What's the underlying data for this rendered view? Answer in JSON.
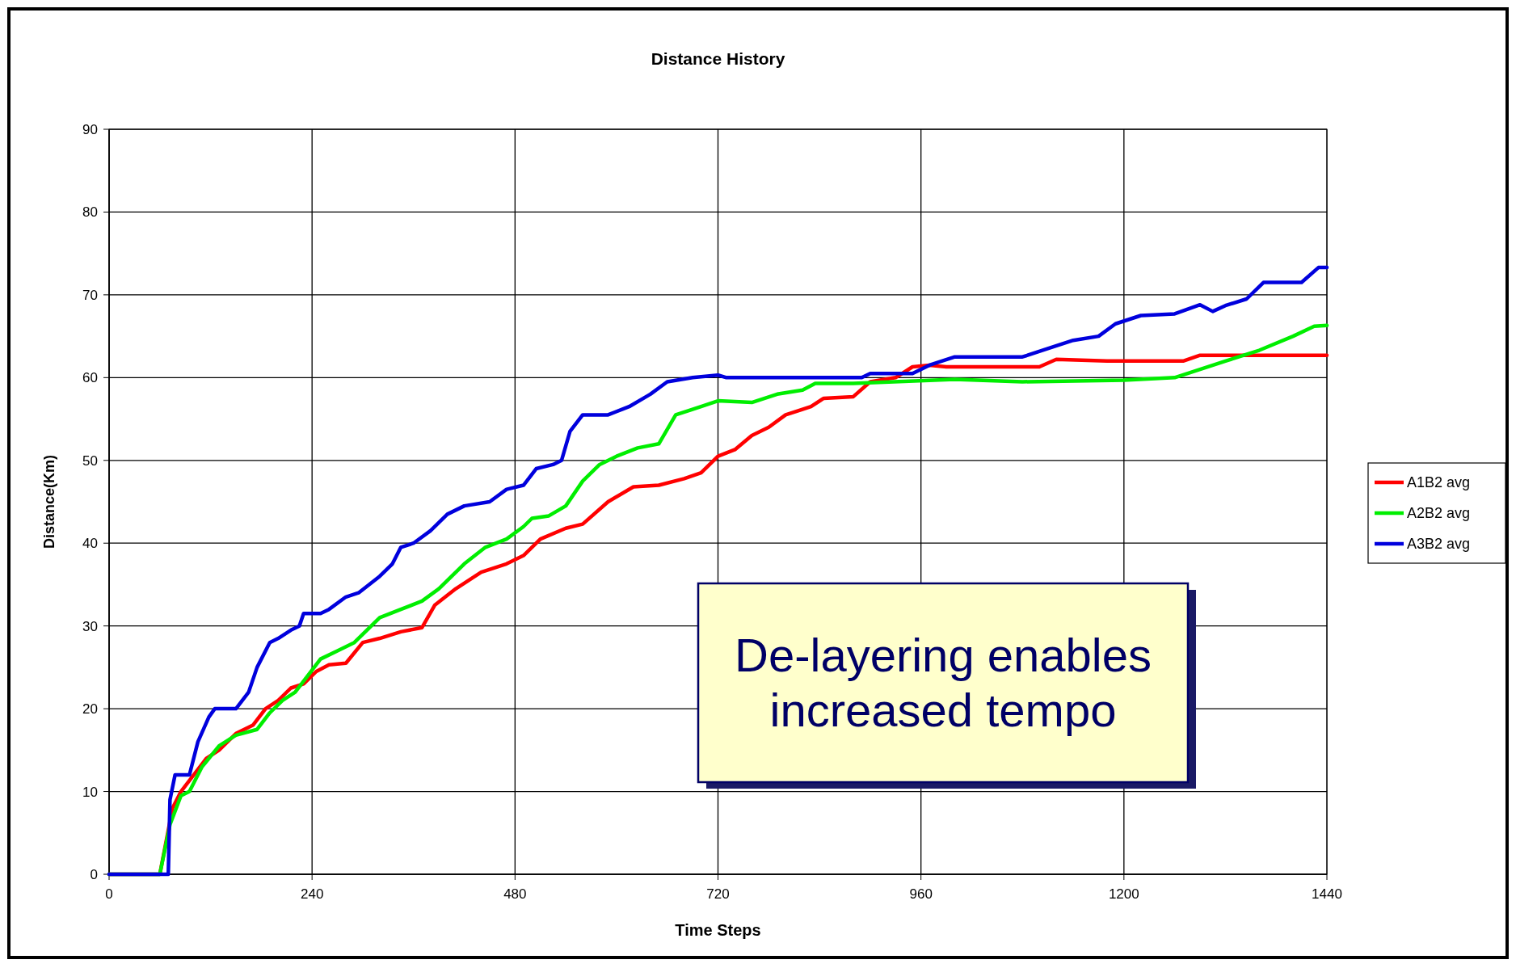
{
  "chart_data": {
    "type": "line",
    "title": "Distance History",
    "xlabel": "Time Steps",
    "ylabel": "Distance(Km)",
    "xlim": [
      0,
      1440
    ],
    "xticks": [
      0,
      240,
      480,
      720,
      960,
      1200,
      1440
    ],
    "ylim": [
      0,
      90
    ],
    "yticks": [
      0,
      10,
      20,
      30,
      40,
      50,
      60,
      70,
      80,
      90
    ],
    "grid": true,
    "legend": "right",
    "marker": "none",
    "line_style": "solid",
    "annotations": [
      "De-layering enables\nincreased tempo"
    ],
    "series": [
      {
        "name": "A1B2 avg",
        "color": "#ff0000",
        "x": [
          0,
          60,
          75,
          85,
          100,
          115,
          130,
          150,
          170,
          185,
          200,
          215,
          230,
          245,
          260,
          280,
          300,
          320,
          345,
          370,
          385,
          410,
          440,
          470,
          490,
          510,
          540,
          560,
          590,
          620,
          650,
          680,
          700,
          720,
          740,
          760,
          780,
          800,
          830,
          845,
          880,
          900,
          930,
          950,
          970,
          990,
          1100,
          1120,
          1180,
          1270,
          1290,
          1440
        ],
        "values": [
          0,
          0,
          8,
          10,
          12,
          14,
          15,
          17,
          18,
          20,
          21,
          22.5,
          23,
          24.5,
          25.3,
          25.5,
          28,
          28.5,
          29.3,
          29.8,
          32.5,
          34.5,
          36.5,
          37.5,
          38.5,
          40.5,
          41.8,
          42.3,
          45,
          46.8,
          47,
          47.8,
          48.5,
          50.5,
          51.3,
          53,
          54,
          55.5,
          56.5,
          57.5,
          57.7,
          59.5,
          60,
          61.3,
          61.5,
          61.3,
          61.3,
          62.2,
          62,
          62,
          62.7,
          62.7
        ]
      },
      {
        "name": "A2B2 avg",
        "color": "#00ee00",
        "x": [
          0,
          60,
          72,
          85,
          95,
          110,
          130,
          150,
          175,
          190,
          205,
          220,
          235,
          250,
          270,
          290,
          300,
          320,
          345,
          370,
          390,
          420,
          445,
          470,
          490,
          500,
          520,
          540,
          560,
          580,
          600,
          625,
          650,
          670,
          700,
          720,
          760,
          790,
          820,
          835,
          880,
          1000,
          1080,
          1200,
          1260,
          1290,
          1320,
          1360,
          1400,
          1425,
          1440
        ],
        "values": [
          0,
          0,
          6,
          9.5,
          10,
          13,
          15.5,
          16.8,
          17.5,
          19.5,
          21,
          22,
          24,
          26,
          27,
          28,
          29,
          31,
          32,
          33,
          34.5,
          37.5,
          39.5,
          40.5,
          42,
          43,
          43.3,
          44.5,
          47.5,
          49.5,
          50.5,
          51.5,
          52,
          55.5,
          56.5,
          57.2,
          57,
          58,
          58.5,
          59.3,
          59.3,
          59.8,
          59.5,
          59.7,
          60,
          61,
          62,
          63.3,
          65,
          66.2,
          66.3
        ]
      },
      {
        "name": "A3B2 avg",
        "color": "#0000dd",
        "x": [
          0,
          70,
          72,
          78,
          95,
          105,
          118,
          125,
          150,
          165,
          175,
          190,
          200,
          215,
          225,
          230,
          250,
          260,
          280,
          295,
          320,
          335,
          345,
          360,
          380,
          400,
          420,
          450,
          470,
          490,
          505,
          525,
          535,
          545,
          560,
          590,
          615,
          640,
          660,
          690,
          720,
          730,
          890,
          900,
          950,
          970,
          1000,
          1080,
          1110,
          1140,
          1170,
          1190,
          1220,
          1260,
          1290,
          1305,
          1320,
          1345,
          1365,
          1410,
          1430,
          1440
        ],
        "values": [
          0,
          0,
          9,
          12,
          12,
          16,
          19,
          20,
          20,
          22,
          25,
          28,
          28.5,
          29.5,
          30,
          31.5,
          31.5,
          32,
          33.5,
          34,
          36,
          37.5,
          39.5,
          40,
          41.5,
          43.5,
          44.5,
          45,
          46.5,
          47,
          49,
          49.5,
          50,
          53.5,
          55.5,
          55.5,
          56.5,
          58,
          59.5,
          60,
          60.3,
          60,
          60,
          60.5,
          60.5,
          61.5,
          62.5,
          62.5,
          63.5,
          64.5,
          65,
          66.5,
          67.5,
          67.7,
          68.8,
          68,
          68.7,
          69.5,
          71.5,
          71.5,
          73.3,
          73.3
        ]
      }
    ]
  }
}
